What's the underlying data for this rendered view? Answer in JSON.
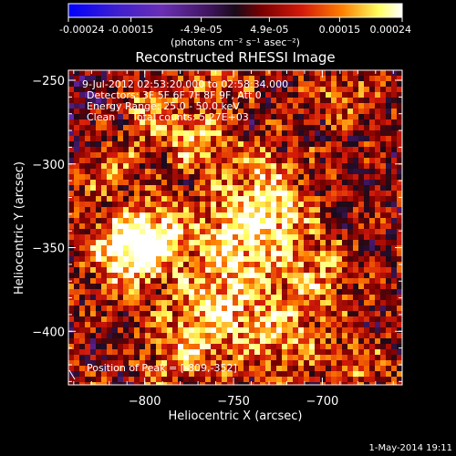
{
  "colorbar": {
    "tick_labels": [
      "-0.00024",
      "-0.00015",
      "-4.9e-05",
      "4.9e-05",
      "0.00015",
      "0.00024"
    ],
    "tick_values": [
      -0.00024,
      -0.00015,
      -4.9e-05,
      4.9e-05,
      0.00015,
      0.00024
    ],
    "range": [
      -0.00024,
      0.00024
    ],
    "unit_label": "(photons cm⁻² s⁻¹ asec⁻²)",
    "colors": [
      "#0000ff",
      "#6a2fb4",
      "#5a1f8f",
      "#1a0a1a",
      "#7a0000",
      "#d41a0a",
      "#ff7f00",
      "#ffff60",
      "#ffffff"
    ]
  },
  "title": "Reconstructed RHESSI Image",
  "annotations": {
    "time_range": "9-Jul-2012 02:53:20.000 to 02:58:34.000",
    "detectors": "Detectors: 3F 5F 6F 7F 8F 9F, Att 0",
    "energy": "Energy Range: 25.0 - 50.0 keV",
    "clean_label": "Clean",
    "counts": "Total counts: 5.27E+03",
    "peak": "Position of Peak = [-809,-352]"
  },
  "footer_date": "1-May-2014 19:11",
  "chart_data": {
    "type": "heatmap",
    "title": "Reconstructed RHESSI Image",
    "xlabel": "Heliocentric X (arcsec)",
    "ylabel": "Heliocentric Y (arcsec)",
    "xlim": [
      -843,
      -655
    ],
    "ylim": [
      -432,
      -244
    ],
    "x_ticks": [
      -800,
      -750,
      -700
    ],
    "y_ticks": [
      -250,
      -300,
      -350,
      -400
    ],
    "x_tick_labels": [
      "−800",
      "−750",
      "−700"
    ],
    "y_tick_labels": [
      "−250",
      "−300",
      "−350",
      "−400"
    ],
    "peak_position": [
      -809,
      -352
    ],
    "colorbar_range": [
      -0.00024,
      0.00024
    ],
    "colormap": "blue-purple-black-red-orange-yellow-white",
    "grid": false
  }
}
